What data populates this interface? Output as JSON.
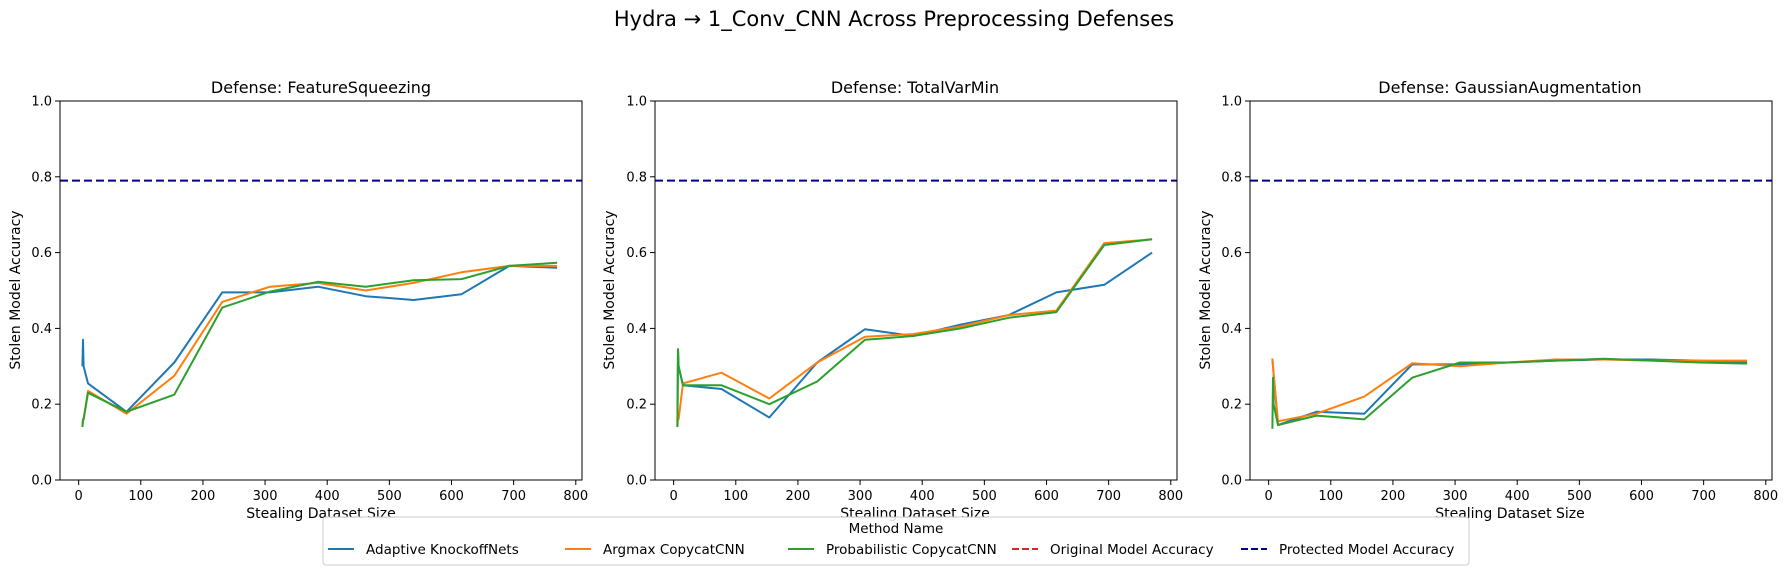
{
  "figure": {
    "suptitle": "Hydra → 1_Conv_CNN Across Preprocessing Defenses"
  },
  "colors": {
    "Adaptive KnockoffNets": "#1f77b4",
    "Argmax CopycatCNN": "#ff7f0e",
    "Probabilistic CopycatCNN": "#2ca02c",
    "Original Model Accuracy": "#d62728",
    "Protected Model Accuracy": "#00008b"
  },
  "legend": {
    "title": "Method Name",
    "placement": "lower-center",
    "entries": [
      {
        "label": "Adaptive KnockoffNets",
        "style": "solid"
      },
      {
        "label": "Argmax CopycatCNN",
        "style": "solid"
      },
      {
        "label": "Probabilistic CopycatCNN",
        "style": "solid"
      },
      {
        "label": "Original Model Accuracy",
        "style": "dashed"
      },
      {
        "label": "Protected Model Accuracy",
        "style": "dashed"
      }
    ]
  },
  "chart_data": [
    {
      "type": "line",
      "title": "Defense: FeatureSqueezing",
      "xlabel": "Stealing Dataset Size",
      "ylabel": "Stolen Model Accuracy",
      "xlim": [
        -30,
        810
      ],
      "ylim": [
        0,
        1
      ],
      "xticks": [
        0,
        100,
        200,
        300,
        400,
        500,
        600,
        700,
        800
      ],
      "yticks": [
        0.0,
        0.2,
        0.4,
        0.6,
        0.8,
        1.0
      ],
      "grid": false,
      "hlines": [
        {
          "name": "Protected Model Accuracy",
          "y": 0.79
        }
      ],
      "series": [
        {
          "name": "Adaptive KnockoffNets",
          "x": [
            6,
            7,
            8,
            15,
            77,
            154,
            231,
            308,
            385,
            462,
            539,
            616,
            693,
            770
          ],
          "y": [
            0.3,
            0.37,
            0.3,
            0.255,
            0.18,
            0.31,
            0.495,
            0.495,
            0.51,
            0.485,
            0.475,
            0.49,
            0.565,
            0.56
          ]
        },
        {
          "name": "Argmax CopycatCNN",
          "x": [
            6,
            7,
            8,
            15,
            77,
            154,
            231,
            308,
            385,
            462,
            539,
            616,
            693,
            770
          ],
          "y": [
            0.14,
            0.16,
            0.16,
            0.235,
            0.175,
            0.275,
            0.47,
            0.51,
            0.52,
            0.5,
            0.52,
            0.548,
            0.565,
            0.565
          ]
        },
        {
          "name": "Probabilistic CopycatCNN",
          "x": [
            6,
            7,
            8,
            15,
            77,
            154,
            231,
            308,
            385,
            462,
            539,
            616,
            693,
            770
          ],
          "y": [
            0.14,
            0.16,
            0.16,
            0.23,
            0.18,
            0.225,
            0.455,
            0.497,
            0.523,
            0.51,
            0.527,
            0.53,
            0.565,
            0.573
          ]
        }
      ]
    },
    {
      "type": "line",
      "title": "Defense: TotalVarMin",
      "xlabel": "Stealing Dataset Size",
      "ylabel": "Stolen Model Accuracy",
      "xlim": [
        -30,
        810
      ],
      "ylim": [
        0,
        1
      ],
      "xticks": [
        0,
        100,
        200,
        300,
        400,
        500,
        600,
        700,
        800
      ],
      "yticks": [
        0.0,
        0.2,
        0.4,
        0.6,
        0.8,
        1.0
      ],
      "grid": false,
      "hlines": [
        {
          "name": "Protected Model Accuracy",
          "y": 0.79
        }
      ],
      "series": [
        {
          "name": "Adaptive KnockoffNets",
          "x": [
            6,
            7,
            8,
            15,
            77,
            154,
            231,
            308,
            385,
            462,
            539,
            616,
            693,
            770
          ],
          "y": [
            0.14,
            0.345,
            0.3,
            0.25,
            0.24,
            0.165,
            0.31,
            0.398,
            0.38,
            0.41,
            0.435,
            0.495,
            0.515,
            0.6
          ]
        },
        {
          "name": "Argmax CopycatCNN",
          "x": [
            6,
            7,
            8,
            15,
            77,
            154,
            231,
            308,
            385,
            462,
            539,
            616,
            693,
            770
          ],
          "y": [
            0.14,
            0.16,
            0.16,
            0.255,
            0.283,
            0.215,
            0.31,
            0.378,
            0.385,
            0.405,
            0.435,
            0.447,
            0.625,
            0.635
          ]
        },
        {
          "name": "Probabilistic CopycatCNN",
          "x": [
            6,
            7,
            8,
            15,
            77,
            154,
            231,
            308,
            385,
            462,
            539,
            616,
            693,
            770
          ],
          "y": [
            0.14,
            0.345,
            0.3,
            0.25,
            0.25,
            0.2,
            0.26,
            0.37,
            0.38,
            0.4,
            0.428,
            0.443,
            0.62,
            0.635
          ]
        }
      ]
    },
    {
      "type": "line",
      "title": "Defense: GaussianAugmentation",
      "xlabel": "Stealing Dataset Size",
      "ylabel": "Stolen Model Accuracy",
      "xlim": [
        -30,
        810
      ],
      "ylim": [
        0,
        1
      ],
      "xticks": [
        0,
        100,
        200,
        300,
        400,
        500,
        600,
        700,
        800
      ],
      "yticks": [
        0.0,
        0.2,
        0.4,
        0.6,
        0.8,
        1.0
      ],
      "grid": false,
      "hlines": [
        {
          "name": "Protected Model Accuracy",
          "y": 0.79
        }
      ],
      "series": [
        {
          "name": "Adaptive KnockoffNets",
          "x": [
            6,
            7,
            8,
            15,
            77,
            154,
            231,
            308,
            385,
            462,
            539,
            616,
            693,
            770
          ],
          "y": [
            0.32,
            0.3,
            0.28,
            0.145,
            0.18,
            0.175,
            0.305,
            0.305,
            0.31,
            0.315,
            0.318,
            0.318,
            0.315,
            0.31
          ]
        },
        {
          "name": "Argmax CopycatCNN",
          "x": [
            6,
            7,
            8,
            15,
            77,
            154,
            231,
            308,
            385,
            462,
            539,
            616,
            693,
            770
          ],
          "y": [
            0.32,
            0.3,
            0.28,
            0.155,
            0.175,
            0.22,
            0.308,
            0.3,
            0.31,
            0.318,
            0.318,
            0.315,
            0.315,
            0.315
          ]
        },
        {
          "name": "Probabilistic CopycatCNN",
          "x": [
            6,
            7,
            8,
            15,
            77,
            154,
            231,
            308,
            385,
            462,
            539,
            616,
            693,
            770
          ],
          "y": [
            0.135,
            0.27,
            0.2,
            0.145,
            0.17,
            0.16,
            0.27,
            0.31,
            0.31,
            0.315,
            0.32,
            0.315,
            0.31,
            0.307
          ]
        }
      ]
    }
  ]
}
